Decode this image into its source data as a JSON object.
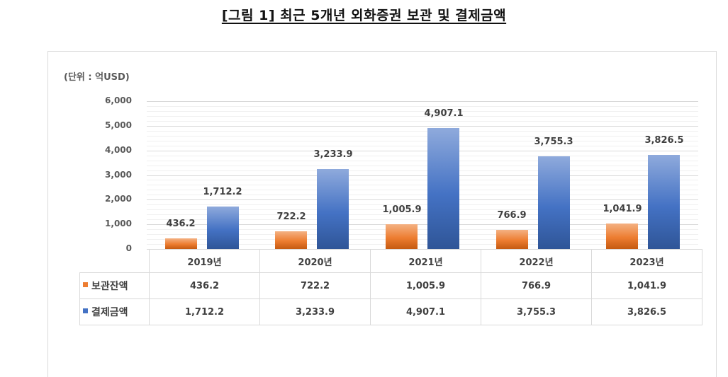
{
  "title": "[그림 1] 최근 5개년 외화증권 보관 및 결제금액",
  "unit_label": "(단위 : 억USD)",
  "colors": {
    "storage": "#ed7d31",
    "settlement": "#4472c4",
    "grid": "#d9d9d9"
  },
  "yaxis": {
    "ticks": [
      "6,000",
      "5,000",
      "4,000",
      "3,000",
      "2,000",
      "1,000",
      "0"
    ]
  },
  "table": {
    "headers": [
      "2019년",
      "2020년",
      "2021년",
      "2022년",
      "2023년"
    ],
    "rows": [
      {
        "label": "보관잔액",
        "values": [
          "436.2",
          "722.2",
          "1,005.9",
          "766.9",
          "1,041.9"
        ]
      },
      {
        "label": "결제금액",
        "values": [
          "1,712.2",
          "3,233.9",
          "4,907.1",
          "3,755.3",
          "3,826.5"
        ]
      }
    ]
  },
  "chart_data": {
    "type": "bar",
    "title": "[그림 1] 최근 5개년 외화증권 보관 및 결제금액",
    "xlabel": "",
    "ylabel": "(단위 : 억USD)",
    "categories": [
      "2019년",
      "2020년",
      "2021년",
      "2022년",
      "2023년"
    ],
    "series": [
      {
        "name": "보관잔액",
        "color": "#ed7d31",
        "values": [
          436.2,
          722.2,
          1005.9,
          766.9,
          1041.9
        ],
        "labels": [
          "436.2",
          "722.2",
          "1,005.9",
          "766.9",
          "1,041.9"
        ]
      },
      {
        "name": "결제금액",
        "color": "#4472c4",
        "values": [
          1712.2,
          3233.9,
          4907.1,
          3755.3,
          3826.5
        ],
        "labels": [
          "1,712.2",
          "3,233.9",
          "4,907.1",
          "3,755.3",
          "3,826.5"
        ]
      }
    ],
    "ylim": [
      0,
      6000
    ],
    "yticks": [
      0,
      1000,
      2000,
      3000,
      4000,
      5000,
      6000
    ],
    "grid": true,
    "legend_position": "data-table-below"
  }
}
